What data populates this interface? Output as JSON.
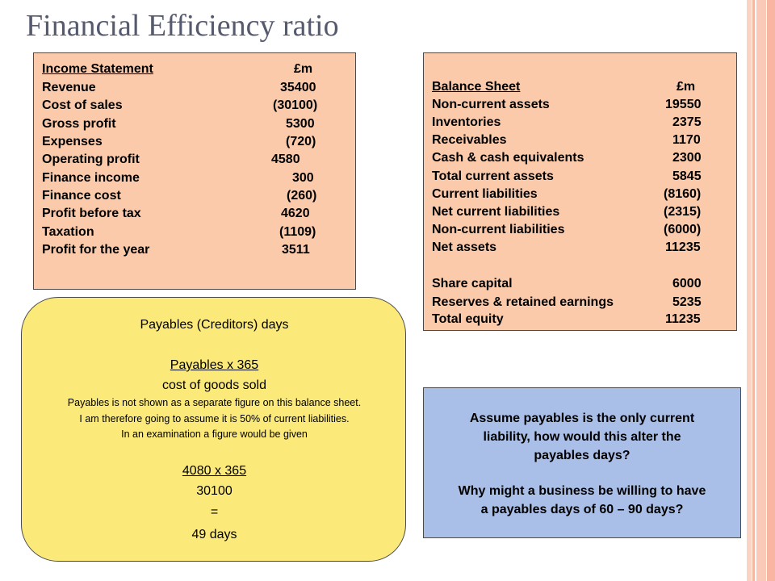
{
  "title": "Financial Efficiency ratio",
  "colors": {
    "peach": "#fbcaab",
    "yellow": "#fbe97a",
    "blue": "#a9bfe8",
    "title_gray": "#555a6e",
    "stripe_pink": "#f5b6a3"
  },
  "income_statement": {
    "heading": "Income Statement",
    "unit": "£m",
    "rows": [
      {
        "label": "Revenue",
        "value": "35400"
      },
      {
        "label": "Cost of sales",
        "value": "(30100)"
      },
      {
        "label": "Gross profit",
        "value": "5300"
      },
      {
        "label": "Expenses",
        "value": "(720)"
      },
      {
        "label": "Operating profit",
        "value": "4580"
      },
      {
        "label": "Finance income",
        "value": "300"
      },
      {
        "label": "Finance cost",
        "value": "(260)"
      },
      {
        "label": "Profit before tax",
        "value": "4620"
      },
      {
        "label": "Taxation",
        "value": "(1109)"
      },
      {
        "label": "Profit for the year",
        "value": "3511"
      }
    ]
  },
  "balance_sheet": {
    "heading": "Balance Sheet",
    "unit": "£m",
    "rows": [
      {
        "label": "Non-current assets",
        "value": "19550"
      },
      {
        "label": "Inventories",
        "value": "2375"
      },
      {
        "label": "Receivables",
        "value": "1170"
      },
      {
        "label": "Cash & cash equivalents",
        "value": "2300"
      },
      {
        "label": "Total current assets",
        "value": "5845"
      },
      {
        "label": "Current liabilities",
        "value": "(8160)"
      },
      {
        "label": "Net current liabilities",
        "value": "(2315)"
      },
      {
        "label": "Non-current liabilities",
        "value": "(6000)"
      },
      {
        "label": "Net assets",
        "value": "11235"
      },
      {
        "label": "Share capital",
        "value": "6000"
      },
      {
        "label": "Reserves & retained earnings",
        "value": "5235"
      },
      {
        "label": "Total equity",
        "value": "11235"
      }
    ]
  },
  "payables_box": {
    "title": "Payables (Creditors) days",
    "formula_numerator": "Payables x 365",
    "formula_denominator": "cost of goods sold",
    "note_lines": [
      "Payables is not shown as a separate figure on this balance sheet.",
      "I am therefore going to assume it is 50% of current liabilities.",
      "In an examination a figure would be given"
    ],
    "calc_numerator": "4080 x 365",
    "calc_denominator": "30100",
    "equals": "=",
    "result": "49 days"
  },
  "question_box": {
    "question1_lines": [
      "Assume payables is the only current",
      "liability, how would this alter the",
      "payables days?"
    ],
    "question2_lines": [
      "Why might a business be willing to have",
      "a payables days of 60 – 90 days?"
    ]
  }
}
